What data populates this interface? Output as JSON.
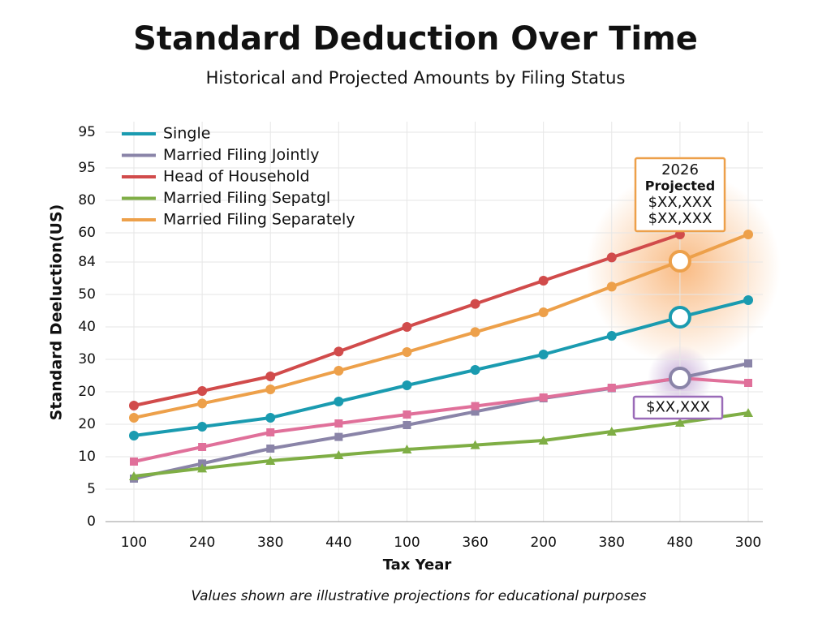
{
  "chart_data": {
    "type": "line",
    "title": "Standard Deduction Over Time",
    "subtitle": "Historical and Projected Amounts by Filing Status",
    "x_label": "Tax Year",
    "y_label": "Standard Deeluction(US)",
    "footnote": "Values shown are illustrative projections for educational purposes",
    "categories": [
      "100",
      "240",
      "380",
      "440",
      "100",
      "360",
      "200",
      "380",
      "480",
      "300"
    ],
    "ylim": [
      0,
      120
    ],
    "yticks": [
      0,
      {
        "value": 10,
        "label": "5"
      },
      {
        "value": 20,
        "label": "10"
      },
      {
        "value": 30,
        "label": "20"
      },
      {
        "value": 40,
        "label": "20"
      },
      {
        "value": 50,
        "label": "30"
      },
      {
        "value": 60,
        "label": "40"
      },
      {
        "value": 70,
        "label": "50"
      },
      {
        "value": 80,
        "label": "84"
      },
      {
        "value": 89,
        "label": "60"
      },
      {
        "value": 99,
        "label": "80"
      },
      {
        "value": 109,
        "label": "95"
      },
      {
        "value": 120,
        "label": "95"
      }
    ],
    "grid": true,
    "legend": "top-left",
    "series": [
      {
        "name": "Single",
        "color": "#1a9bb0",
        "values": [
          26.5,
          29.25,
          32,
          37,
          42,
          46.75,
          51.5,
          57.25,
          63,
          68.25
        ]
      },
      {
        "name": "Married Filing Jointly",
        "color": "#8a84a8",
        "values": [
          13.25,
          17.9,
          22.5,
          26.1,
          29.75,
          33.9,
          38,
          41.1,
          44.25,
          48.75
        ]
      },
      {
        "name": "Head of Household",
        "color": "#d14b4b",
        "values": [
          35.75,
          40.25,
          44.75,
          52.4,
          60,
          67.1,
          74.25,
          81.4,
          88.5,
          null
        ]
      },
      {
        "name": "Married Filing Sepatgl",
        "color": "#7fae45",
        "values": [
          14,
          16.4,
          18.75,
          20.5,
          22.25,
          23.6,
          25,
          27.75,
          30.5,
          33.5
        ]
      },
      {
        "name": "Married Filing Separately",
        "color": "#eda04a",
        "values": [
          32,
          36.4,
          40.75,
          46.5,
          52.25,
          58.4,
          64.5,
          72.4,
          80.25,
          88.5
        ]
      },
      {
        "color": "#e0709a",
        "values": [
          18.5,
          23,
          27.5,
          30.25,
          33,
          35.6,
          38.25,
          41.25,
          44.25,
          42.75
        ]
      }
    ],
    "annotations": [
      {
        "lines": [
          "2026",
          "Projected",
          "$XX,XXX",
          "$XX,XXX"
        ],
        "color": "#eda04a"
      },
      {
        "lines": [
          "$XX,XXX"
        ],
        "color": "#9a6bb8"
      }
    ]
  }
}
